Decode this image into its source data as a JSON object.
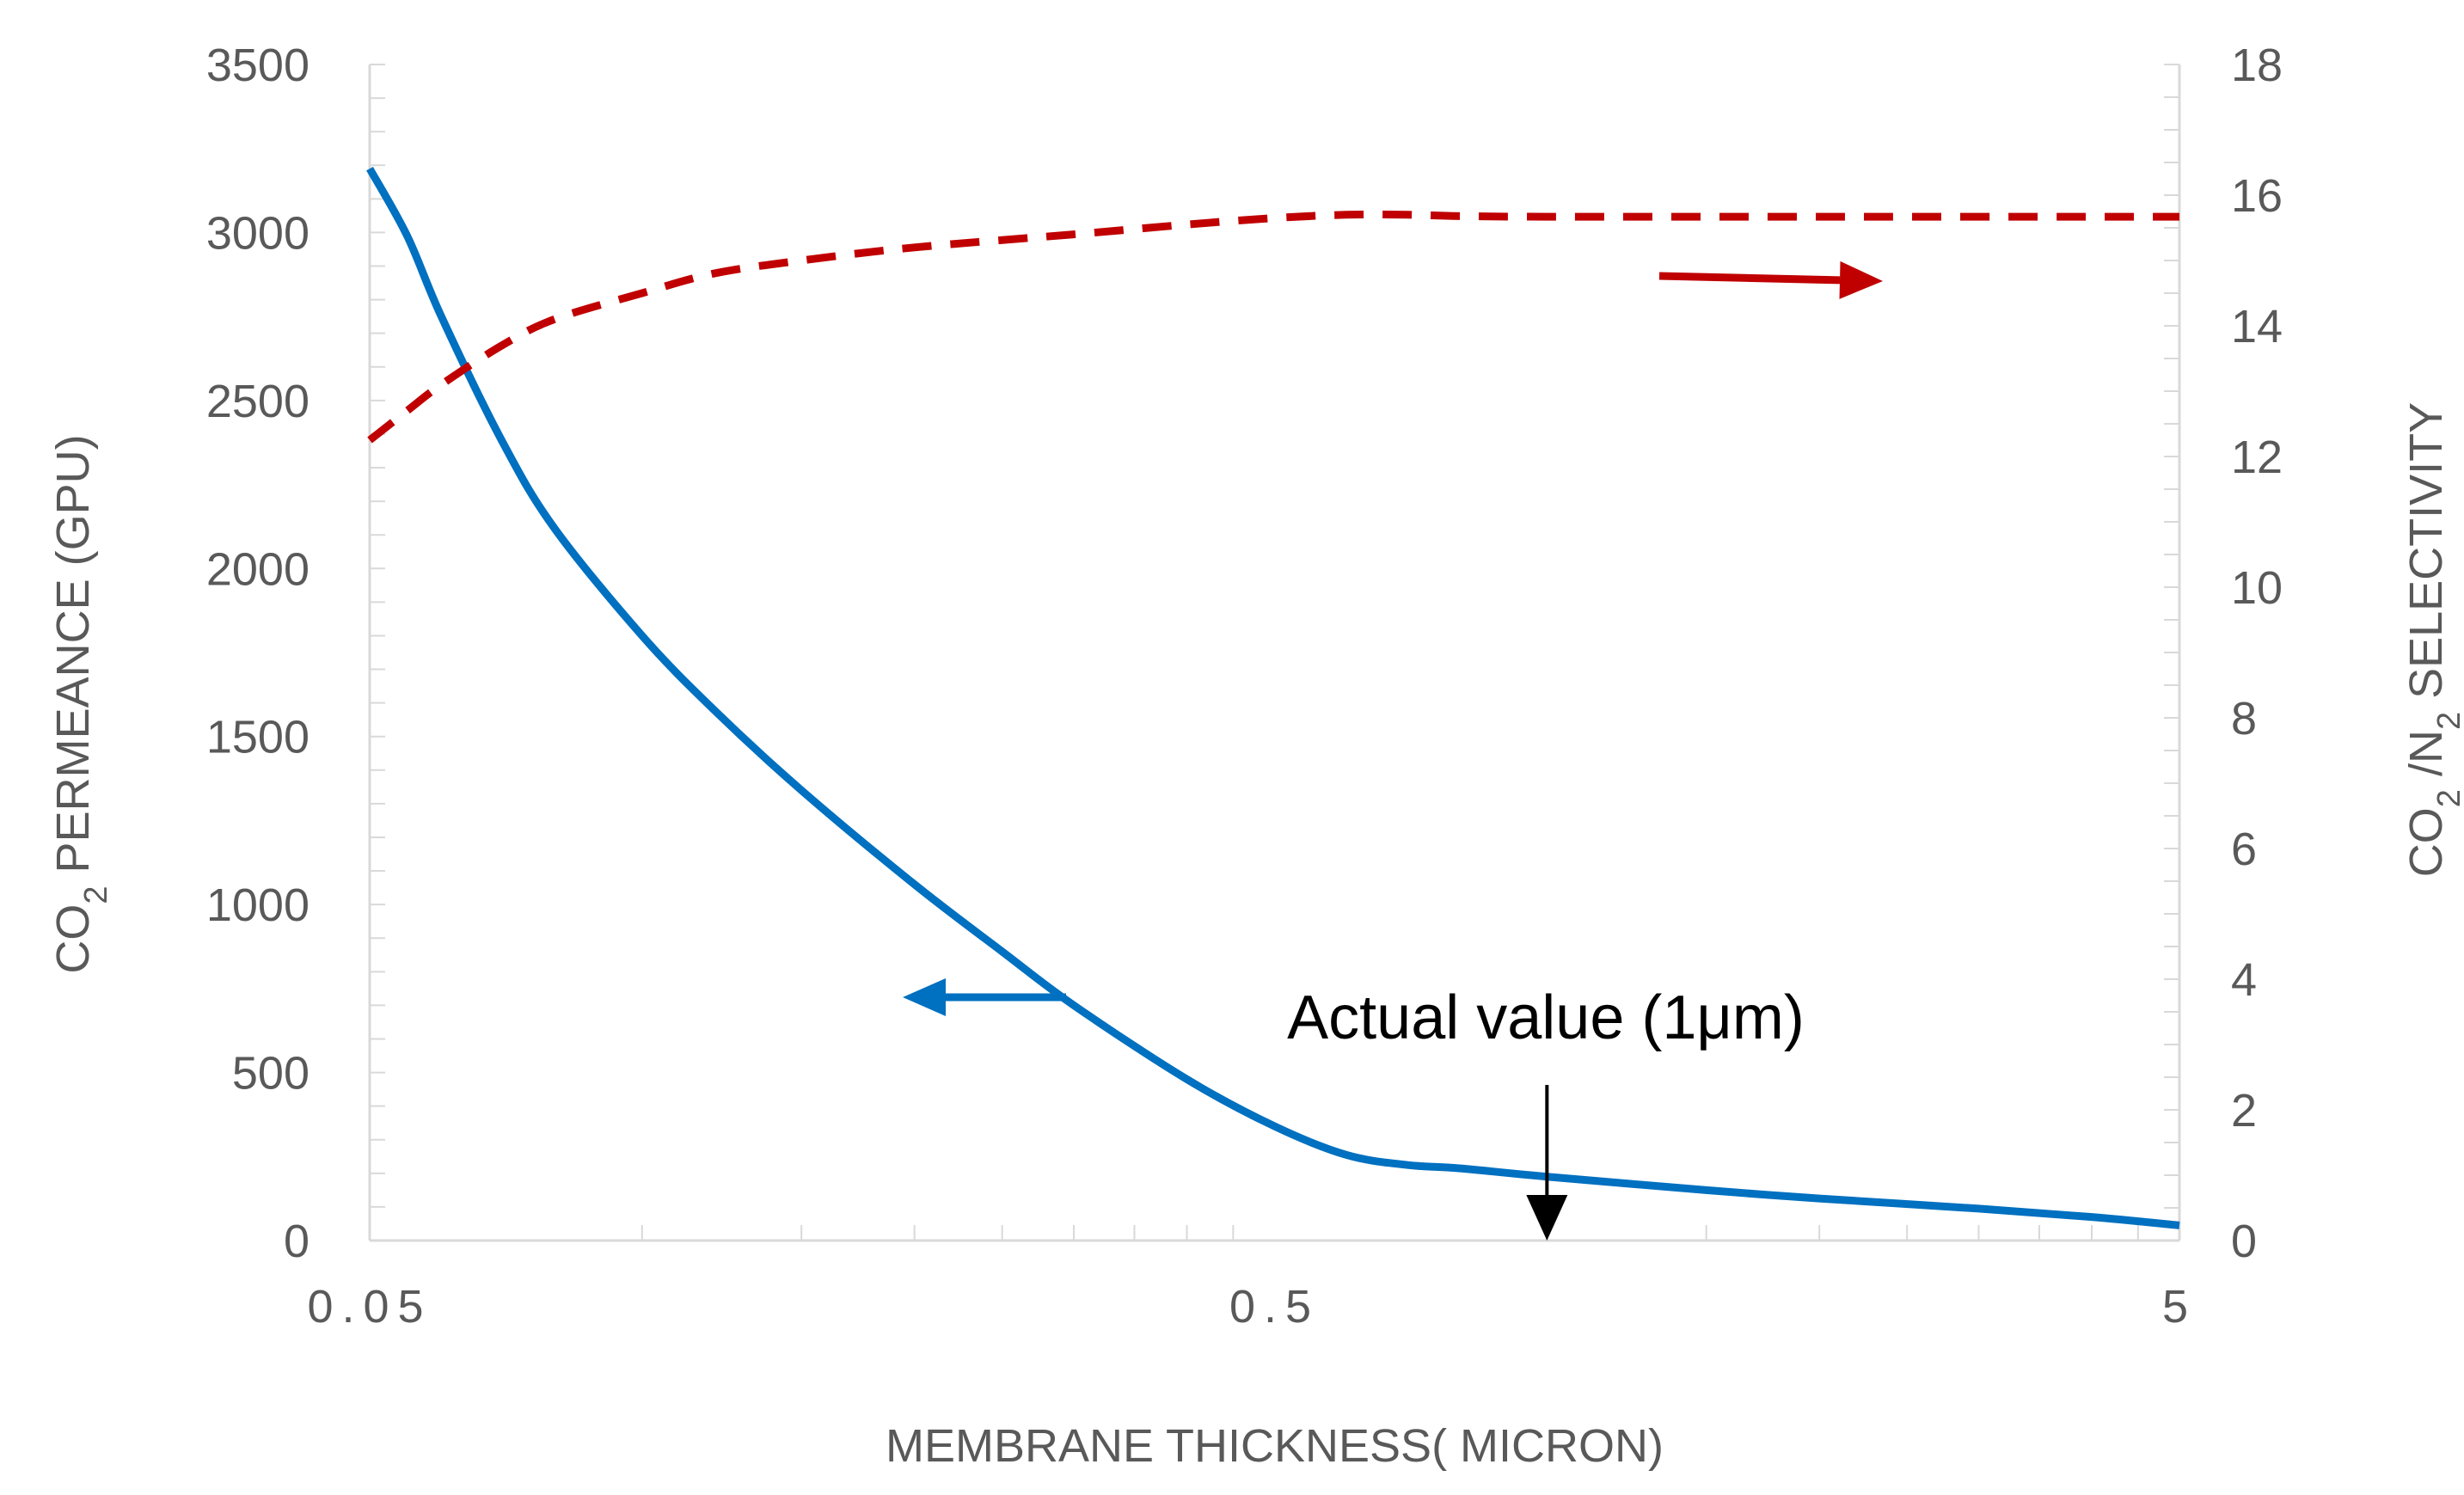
{
  "chart_data": {
    "type": "line",
    "xscale": "log",
    "xlim": [
      0.05,
      5
    ],
    "xticks": [
      "0.05",
      "0.5",
      "5"
    ],
    "xlabel": "MEMBRANE THICKNESS( MICRON)",
    "y_left": {
      "label_parts": [
        "CO",
        "2",
        " PERMEANCE (GPU)"
      ],
      "ylim": [
        0,
        3500
      ],
      "ticks": [
        "0",
        "500",
        "1000",
        "1500",
        "2000",
        "2500",
        "3000",
        "3500"
      ]
    },
    "y_right": {
      "label_parts": [
        "CO",
        "2",
        " /N",
        "2",
        " SELECTIVITY"
      ],
      "ylim": [
        0,
        18
      ],
      "ticks": [
        "0",
        "2",
        "4",
        "6",
        "8",
        "10",
        "12",
        "14",
        "16",
        "18"
      ]
    },
    "grid": false,
    "series": [
      {
        "axis": "left",
        "style": "solid",
        "color": "#0070C0",
        "x": [
          0.05,
          0.055,
          0.06,
          0.07,
          0.08,
          0.1,
          0.12,
          0.15,
          0.2,
          0.25,
          0.3,
          0.4,
          0.5,
          0.6,
          0.7,
          0.8,
          1.0,
          1.5,
          2.0,
          3.0,
          4.0,
          5.0
        ],
        "y": [
          3190,
          2990,
          2750,
          2380,
          2120,
          1800,
          1580,
          1340,
          1060,
          860,
          700,
          480,
          340,
          255,
          225,
          215,
          190,
          150,
          125,
          95,
          70,
          45
        ]
      },
      {
        "axis": "right",
        "style": "dashed",
        "color": "#C00000",
        "x": [
          0.05,
          0.055,
          0.06,
          0.07,
          0.08,
          0.1,
          0.12,
          0.15,
          0.2,
          0.3,
          0.4,
          0.5,
          0.6,
          0.7,
          0.8,
          1.0,
          2.0,
          5.0
        ],
        "y": [
          12.25,
          12.7,
          13.1,
          13.7,
          14.1,
          14.5,
          14.8,
          15.0,
          15.2,
          15.4,
          15.55,
          15.65,
          15.7,
          15.7,
          15.68,
          15.67,
          15.67,
          15.67
        ]
      }
    ],
    "annotations": [
      {
        "text": "Actual value (1μm)",
        "target_x": 1.0
      }
    ],
    "arrow_colors": {
      "left": "#0070C0",
      "right": "#C00000"
    }
  }
}
